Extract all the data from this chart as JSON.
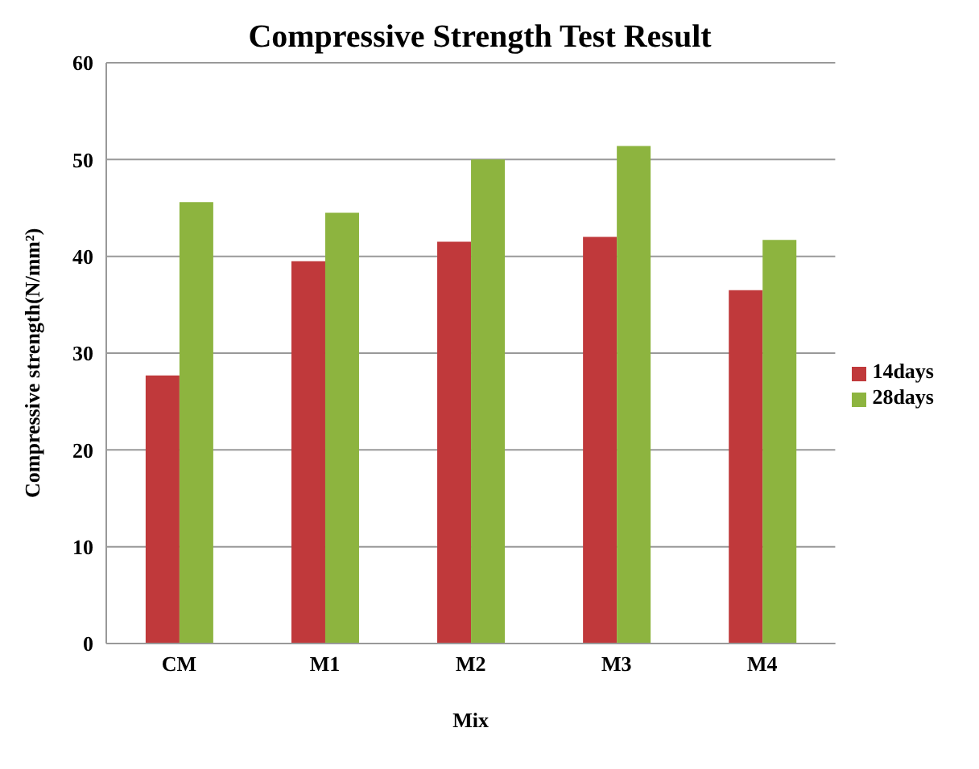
{
  "chart_data": {
    "type": "bar",
    "title": "Compressive Strength Test Result",
    "xlabel": "Mix",
    "ylabel": "Compressive strength(N/mm²)",
    "categories": [
      "CM",
      "M1",
      "M2",
      "M3",
      "M4"
    ],
    "series": [
      {
        "name": "14days",
        "color": "#c0393b",
        "values": [
          27.7,
          39.5,
          41.5,
          42,
          36.5
        ]
      },
      {
        "name": "28days",
        "color": "#8db43f",
        "values": [
          45.6,
          44.5,
          50,
          51.4,
          41.7
        ]
      }
    ],
    "ylim": [
      0,
      60
    ],
    "yticks": [
      0,
      10,
      20,
      30,
      40,
      50,
      60
    ],
    "grid": "y",
    "legend": "right"
  }
}
